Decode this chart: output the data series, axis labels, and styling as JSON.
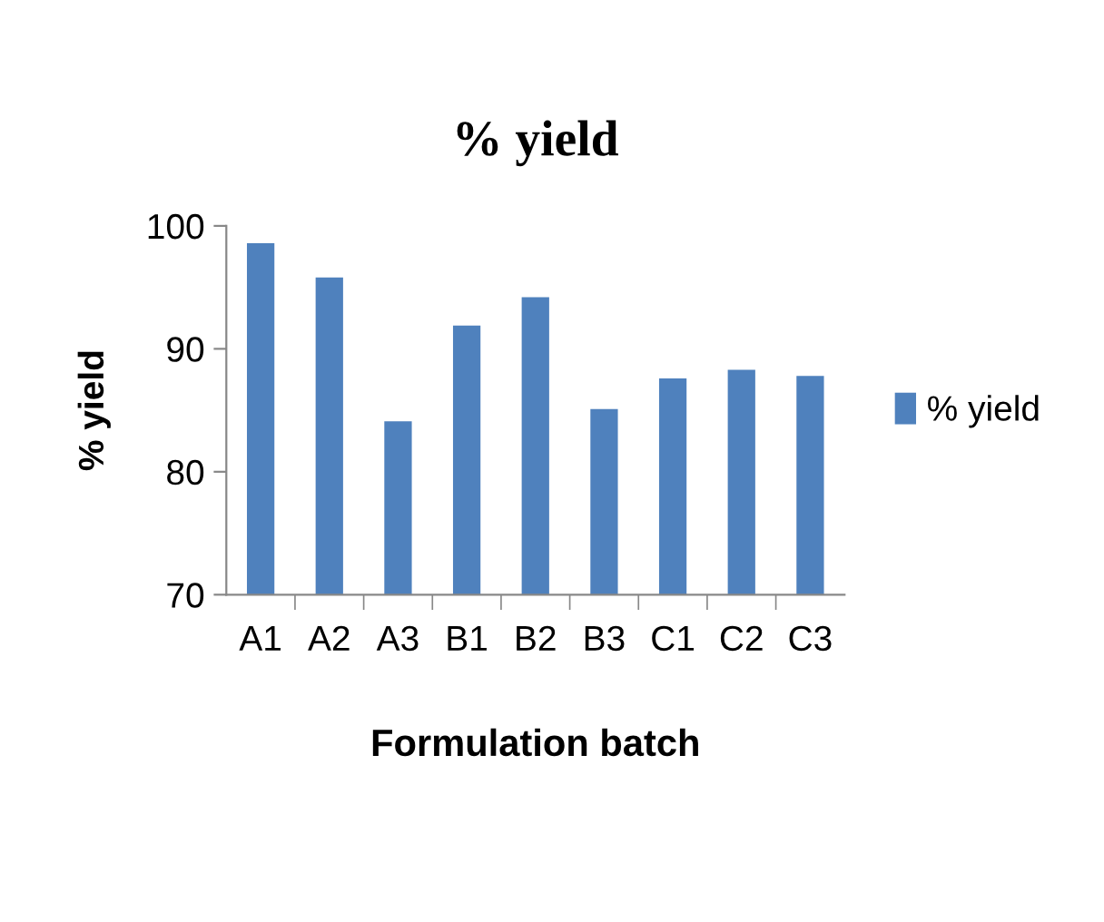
{
  "chart_data": {
    "type": "bar",
    "title": "% yield",
    "xlabel": "Formulation batch",
    "ylabel": "% yield",
    "categories": [
      "A1",
      "A2",
      "A3",
      "B1",
      "B2",
      "B3",
      "C1",
      "C2",
      "C3"
    ],
    "series": [
      {
        "name": "% yield",
        "color": "#4f81bd",
        "values": [
          98.6,
          95.8,
          84.1,
          91.9,
          94.2,
          85.1,
          87.6,
          88.3,
          87.8
        ]
      }
    ],
    "ylim": [
      70,
      100
    ],
    "yticks": [
      70,
      80,
      90,
      100
    ],
    "grid": false,
    "legend": "right"
  }
}
